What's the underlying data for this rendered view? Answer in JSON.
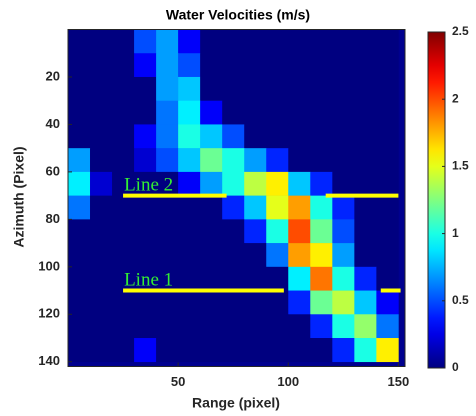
{
  "chart_data": {
    "type": "heatmap",
    "title": "Water Velocities (m/s)",
    "x_label": "Range (pixel)",
    "y_label": "Azimuth (Pixel)",
    "xlim": [
      0,
      153
    ],
    "ylim": [
      0,
      142
    ],
    "y_direction": "reverse",
    "xticks": [
      50,
      100,
      150
    ],
    "yticks": [
      20,
      40,
      60,
      80,
      100,
      120,
      140
    ],
    "xbins": [
      0,
      10,
      20,
      30,
      40,
      50,
      60,
      70,
      80,
      90,
      100,
      110,
      120,
      130,
      140,
      150
    ],
    "ybins": [
      0,
      10,
      20,
      30,
      40,
      50,
      60,
      70,
      80,
      90,
      100,
      110,
      120,
      130,
      140
    ],
    "values": [
      [
        0,
        0,
        0,
        0.5,
        0.7,
        0.3,
        0,
        0,
        0,
        0,
        0,
        0,
        0,
        0,
        0
      ],
      [
        0,
        0,
        0,
        0.3,
        0.7,
        0.5,
        0,
        0,
        0,
        0,
        0,
        0,
        0,
        0,
        0
      ],
      [
        0,
        0,
        0,
        0,
        0.7,
        0.8,
        0,
        0,
        0,
        0,
        0,
        0,
        0,
        0,
        0
      ],
      [
        0,
        0,
        0,
        0,
        0.6,
        0.9,
        0.3,
        0,
        0,
        0,
        0,
        0,
        0,
        0,
        0
      ],
      [
        0,
        0,
        0,
        0.3,
        0.6,
        1.0,
        0.8,
        0.5,
        0,
        0,
        0,
        0,
        0,
        0,
        0
      ],
      [
        0.7,
        0,
        0,
        0.2,
        0.5,
        0.8,
        1.2,
        1.0,
        0.7,
        0.4,
        0,
        0,
        0,
        0,
        0
      ],
      [
        0.9,
        0.2,
        0,
        0,
        0,
        0.3,
        0.7,
        1.0,
        1.4,
        1.6,
        0.8,
        0.4,
        0,
        0,
        0
      ],
      [
        0.6,
        0,
        0,
        0,
        0,
        0,
        0,
        0.4,
        0.8,
        1.5,
        1.8,
        1.0,
        0.4,
        0,
        0
      ],
      [
        0,
        0,
        0,
        0,
        0,
        0,
        0,
        0,
        0.4,
        1.0,
        2.0,
        1.2,
        0.5,
        0,
        0
      ],
      [
        0,
        0,
        0,
        0,
        0,
        0,
        0,
        0,
        0,
        0.6,
        1.8,
        1.6,
        0.7,
        0,
        0
      ],
      [
        0,
        0,
        0,
        0,
        0,
        0,
        0,
        0,
        0,
        0,
        0.9,
        1.9,
        1.0,
        0.4,
        0
      ],
      [
        0,
        0,
        0,
        0,
        0,
        0,
        0,
        0,
        0,
        0,
        0.4,
        1.2,
        1.4,
        0.8,
        0.3
      ],
      [
        0,
        0,
        0,
        0,
        0,
        0,
        0,
        0,
        0,
        0,
        0,
        0.4,
        1.0,
        1.3,
        0.6
      ],
      [
        0,
        0,
        0,
        0.3,
        0,
        0,
        0,
        0,
        0,
        0,
        0,
        0,
        0.4,
        1.0,
        1.6
      ]
    ],
    "colormap": "jet",
    "clim": [
      0,
      2.5
    ],
    "cticks": [
      0,
      0.5,
      1,
      1.5,
      2,
      2.5
    ],
    "lines": [
      {
        "label": "Line 2",
        "y": 70,
        "color": "#ffff00",
        "label_color": "#33ee33",
        "segments": [
          [
            25,
            72
          ],
          [
            117,
            150
          ]
        ]
      },
      {
        "label": "Line 1",
        "y": 110,
        "color": "#ffff00",
        "label_color": "#33ee33",
        "segments": [
          [
            25,
            98
          ],
          [
            142,
            151
          ]
        ]
      }
    ]
  }
}
